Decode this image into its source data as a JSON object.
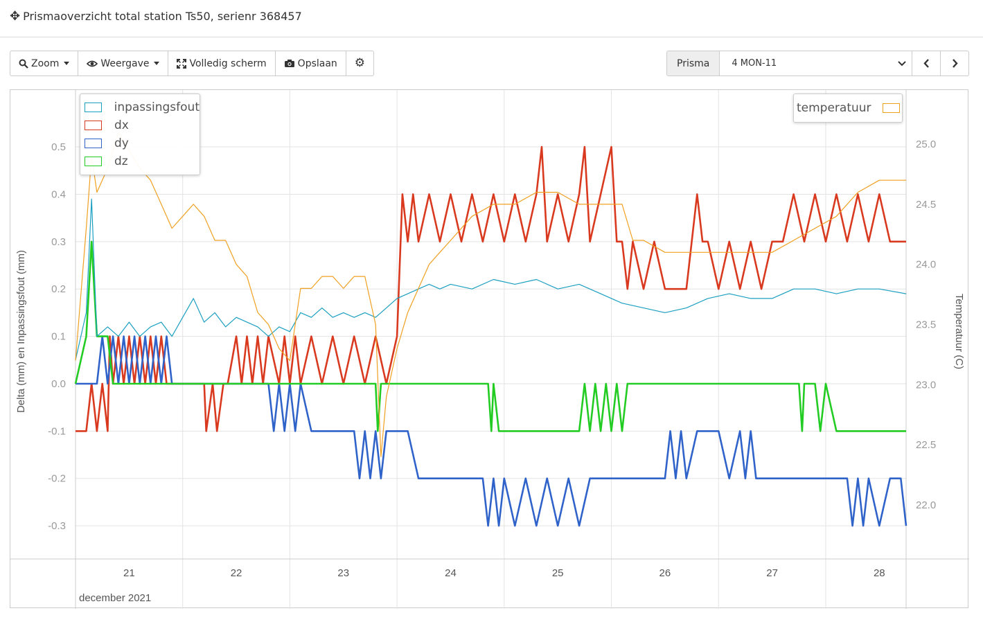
{
  "header": {
    "title": "Prismaoverzicht total station Ts50, serienr 368457",
    "icon": "crosshair-move-icon"
  },
  "toolbar": {
    "zoom": "Zoom",
    "weergave": "Weergave",
    "fullscreen": "Volledig scherm",
    "save": "Opslaan"
  },
  "prisma": {
    "label": "Prisma",
    "selected": "4 MON-11"
  },
  "chart_data": {
    "type": "line",
    "xlabel": "december 2021",
    "ylabel": "Delta (mm) en Inpassingsfout (mm)",
    "y2label": "Temperatuur (C)",
    "x_ticks": [
      "21",
      "22",
      "23",
      "24",
      "25",
      "26",
      "27",
      "28"
    ],
    "y_ticks": [
      "0.5",
      "0.4",
      "0.3",
      "0.2",
      "0.1",
      "0.0",
      "-0.1",
      "-0.2",
      "-0.3"
    ],
    "y2_ticks": [
      "25.0",
      "24.5",
      "24.0",
      "23.5",
      "23.0",
      "22.5",
      "22.0"
    ],
    "xlim": [
      20.5,
      28.25
    ],
    "ylim": [
      -0.37,
      0.62
    ],
    "y2lim": [
      21.55,
      25.45
    ],
    "legend_left": [
      "inpassingsfout",
      "dx",
      "dy",
      "dz"
    ],
    "legend_right": [
      "temperatuur"
    ],
    "colors": {
      "inpassingsfout": "#1a9fc0",
      "dx": "#d9391e",
      "dy": "#2f63c9",
      "dz": "#22cc22",
      "temperatuur": "#f0a020"
    },
    "series": [
      {
        "name": "dx",
        "axis": "y",
        "x": [
          20.5,
          20.6,
          20.65,
          20.7,
          20.75,
          20.8,
          20.82,
          20.85,
          20.9,
          20.95,
          21.0,
          21.05,
          21.1,
          21.15,
          21.2,
          21.25,
          21.3,
          21.35,
          21.4,
          21.7,
          21.72,
          21.78,
          21.82,
          21.88,
          21.92,
          22.0,
          22.05,
          22.1,
          22.15,
          22.2,
          22.25,
          22.3,
          22.4,
          22.45,
          22.5,
          22.55,
          22.6,
          22.7,
          22.8,
          22.9,
          23.0,
          23.1,
          23.2,
          23.3,
          23.4,
          23.5,
          23.55,
          23.6,
          23.65,
          23.7,
          23.8,
          23.9,
          24.0,
          24.1,
          24.2,
          24.3,
          24.4,
          24.5,
          24.6,
          24.7,
          24.8,
          24.85,
          24.9,
          25.0,
          25.1,
          25.2,
          25.25,
          25.3,
          25.4,
          25.5,
          25.55,
          25.6,
          25.65,
          25.7,
          25.8,
          25.9,
          26.0,
          26.1,
          26.2,
          26.3,
          26.35,
          26.4,
          26.5,
          26.6,
          26.7,
          26.8,
          26.9,
          27.0,
          27.1,
          27.2,
          27.3,
          27.4,
          27.5,
          27.6,
          27.7,
          27.8,
          27.9,
          28.0,
          28.1,
          28.25
        ],
        "y": [
          -0.1,
          -0.1,
          0.0,
          -0.1,
          0.0,
          -0.1,
          0.1,
          0.0,
          0.1,
          0.0,
          0.1,
          0.0,
          0.1,
          0.0,
          0.1,
          0.0,
          0.1,
          0.0,
          0.0,
          0.0,
          -0.1,
          0.0,
          -0.1,
          0.0,
          0.0,
          0.1,
          0.0,
          0.1,
          0.0,
          0.1,
          0.0,
          0.1,
          0.0,
          0.1,
          0.0,
          0.1,
          0.0,
          0.1,
          0.0,
          0.1,
          0.0,
          0.1,
          0.0,
          0.1,
          0.0,
          0.1,
          0.4,
          0.3,
          0.4,
          0.3,
          0.4,
          0.3,
          0.4,
          0.3,
          0.4,
          0.3,
          0.4,
          0.3,
          0.4,
          0.3,
          0.4,
          0.5,
          0.3,
          0.4,
          0.3,
          0.4,
          0.5,
          0.3,
          0.4,
          0.5,
          0.3,
          0.3,
          0.2,
          0.3,
          0.2,
          0.3,
          0.2,
          0.2,
          0.2,
          0.4,
          0.3,
          0.3,
          0.2,
          0.3,
          0.2,
          0.3,
          0.2,
          0.3,
          0.3,
          0.4,
          0.3,
          0.4,
          0.3,
          0.4,
          0.3,
          0.4,
          0.3,
          0.4,
          0.3,
          0.3
        ]
      },
      {
        "name": "dy",
        "axis": "y",
        "x": [
          20.5,
          20.7,
          20.75,
          20.8,
          20.85,
          20.9,
          20.95,
          21.0,
          21.05,
          21.1,
          21.15,
          21.2,
          21.25,
          21.3,
          21.35,
          21.4,
          21.5,
          22.0,
          22.1,
          22.2,
          22.3,
          22.35,
          22.4,
          22.45,
          22.5,
          22.55,
          22.6,
          22.7,
          22.75,
          23.0,
          23.1,
          23.15,
          23.2,
          23.25,
          23.3,
          23.35,
          23.4,
          23.5,
          23.6,
          23.7,
          23.8,
          24.0,
          24.2,
          24.3,
          24.35,
          24.4,
          24.45,
          24.5,
          24.6,
          24.7,
          24.8,
          24.9,
          25.0,
          25.1,
          25.2,
          25.3,
          25.4,
          25.5,
          25.6,
          25.7,
          25.8,
          26.0,
          26.05,
          26.1,
          26.15,
          26.2,
          26.3,
          26.4,
          26.5,
          26.6,
          26.7,
          26.75,
          26.8,
          26.85,
          26.9,
          27.0,
          27.5,
          27.6,
          27.7,
          27.75,
          27.8,
          27.85,
          27.9,
          28.0,
          28.1,
          28.2,
          28.25
        ],
        "y": [
          0.0,
          0.0,
          0.1,
          0.0,
          0.1,
          0.0,
          0.1,
          0.0,
          0.1,
          0.0,
          0.1,
          0.0,
          0.1,
          0.0,
          0.1,
          0.0,
          0.0,
          0.0,
          0.0,
          0.0,
          0.0,
          -0.1,
          0.0,
          -0.1,
          0.0,
          -0.1,
          0.0,
          -0.1,
          -0.1,
          -0.1,
          -0.1,
          -0.2,
          -0.1,
          -0.2,
          -0.1,
          -0.2,
          -0.1,
          -0.1,
          -0.1,
          -0.2,
          -0.2,
          -0.2,
          -0.2,
          -0.2,
          -0.3,
          -0.2,
          -0.3,
          -0.2,
          -0.3,
          -0.2,
          -0.3,
          -0.2,
          -0.3,
          -0.2,
          -0.3,
          -0.2,
          -0.2,
          -0.2,
          -0.2,
          -0.2,
          -0.2,
          -0.2,
          -0.1,
          -0.2,
          -0.1,
          -0.2,
          -0.1,
          -0.1,
          -0.1,
          -0.2,
          -0.1,
          -0.2,
          -0.1,
          -0.2,
          -0.2,
          -0.2,
          -0.2,
          -0.2,
          -0.2,
          -0.3,
          -0.2,
          -0.3,
          -0.2,
          -0.3,
          -0.2,
          -0.2,
          -0.3
        ]
      },
      {
        "name": "dz",
        "axis": "y",
        "x": [
          20.5,
          20.6,
          20.65,
          20.7,
          20.75,
          20.8,
          20.85,
          21.0,
          22.0,
          23.0,
          23.3,
          23.32,
          23.35,
          24.0,
          24.35,
          24.38,
          24.4,
          24.45,
          24.5,
          24.55,
          24.9,
          25.2,
          25.25,
          25.3,
          25.35,
          25.4,
          25.45,
          25.5,
          25.55,
          25.6,
          25.65,
          26.0,
          27.0,
          27.25,
          27.28,
          27.3,
          27.4,
          27.45,
          27.5,
          27.6,
          28.0,
          28.25
        ],
        "y": [
          0.0,
          0.1,
          0.3,
          0.1,
          0.1,
          0.1,
          0.0,
          0.0,
          0.0,
          0.0,
          0.0,
          -0.1,
          0.0,
          0.0,
          0.0,
          -0.1,
          0.0,
          -0.1,
          -0.1,
          -0.1,
          -0.1,
          -0.1,
          0.0,
          -0.1,
          0.0,
          -0.1,
          0.0,
          -0.1,
          0.0,
          -0.1,
          0.0,
          0.0,
          0.0,
          0.0,
          -0.1,
          0.0,
          0.0,
          -0.1,
          0.0,
          -0.1,
          -0.1,
          -0.1
        ]
      },
      {
        "name": "inpassingsfout",
        "axis": "y",
        "x": [
          20.5,
          20.6,
          20.65,
          20.7,
          20.8,
          20.9,
          21.0,
          21.1,
          21.2,
          21.3,
          21.4,
          21.5,
          21.6,
          21.7,
          21.8,
          21.9,
          22.0,
          22.1,
          22.2,
          22.3,
          22.4,
          22.5,
          22.6,
          22.7,
          22.8,
          22.9,
          23.0,
          23.1,
          23.2,
          23.3,
          23.4,
          23.5,
          23.6,
          23.7,
          23.8,
          23.9,
          24.0,
          24.2,
          24.4,
          24.6,
          24.8,
          25.0,
          25.2,
          25.4,
          25.6,
          25.8,
          26.0,
          26.2,
          26.4,
          26.6,
          26.8,
          27.0,
          27.2,
          27.4,
          27.6,
          27.8,
          28.0,
          28.25
        ],
        "y": [
          0.05,
          0.15,
          0.39,
          0.1,
          0.12,
          0.1,
          0.13,
          0.1,
          0.12,
          0.13,
          0.1,
          0.14,
          0.18,
          0.13,
          0.15,
          0.12,
          0.14,
          0.13,
          0.12,
          0.1,
          0.12,
          0.11,
          0.15,
          0.14,
          0.16,
          0.14,
          0.15,
          0.14,
          0.15,
          0.14,
          0.16,
          0.18,
          0.19,
          0.2,
          0.21,
          0.2,
          0.21,
          0.2,
          0.22,
          0.21,
          0.22,
          0.2,
          0.21,
          0.19,
          0.17,
          0.16,
          0.15,
          0.16,
          0.18,
          0.19,
          0.18,
          0.18,
          0.2,
          0.2,
          0.19,
          0.2,
          0.2,
          0.19
        ]
      },
      {
        "name": "temperatuur",
        "axis": "y2",
        "x": [
          20.5,
          20.6,
          20.65,
          20.7,
          20.8,
          20.9,
          21.0,
          21.1,
          21.2,
          21.3,
          21.4,
          21.5,
          21.6,
          21.7,
          21.8,
          21.9,
          22.0,
          22.1,
          22.2,
          22.3,
          22.4,
          22.5,
          22.6,
          22.7,
          22.8,
          22.9,
          23.0,
          23.1,
          23.2,
          23.3,
          23.35,
          23.4,
          23.5,
          23.6,
          23.7,
          23.8,
          23.9,
          24.0,
          24.2,
          24.4,
          24.6,
          24.8,
          25.0,
          25.2,
          25.4,
          25.6,
          25.7,
          25.8,
          26.0,
          26.2,
          26.4,
          26.6,
          26.8,
          27.0,
          27.2,
          27.4,
          27.6,
          27.8,
          28.0,
          28.25
        ],
        "y": [
          23.2,
          24.3,
          24.9,
          24.6,
          24.8,
          25.1,
          24.95,
          24.8,
          24.7,
          24.5,
          24.3,
          24.4,
          24.5,
          24.4,
          24.2,
          24.2,
          24.0,
          23.9,
          23.6,
          23.5,
          23.3,
          23.2,
          23.8,
          23.8,
          23.9,
          23.9,
          23.8,
          23.9,
          23.9,
          23.5,
          22.4,
          22.9,
          23.3,
          23.6,
          23.8,
          24.0,
          24.1,
          24.2,
          24.4,
          24.5,
          24.5,
          24.6,
          24.6,
          24.5,
          24.5,
          24.5,
          24.2,
          24.2,
          24.1,
          24.1,
          24.1,
          24.1,
          24.1,
          24.1,
          24.2,
          24.3,
          24.4,
          24.6,
          24.7,
          24.7
        ]
      }
    ]
  }
}
